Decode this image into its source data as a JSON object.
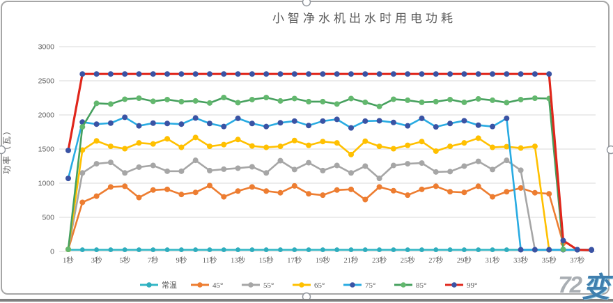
{
  "watermark": {
    "prefix": "72",
    "suffix": "变"
  },
  "chart_data": {
    "type": "line",
    "title": "小智净水机出水时用电功耗",
    "xlabel": "",
    "ylabel": "功率（瓦）",
    "ylim": [
      0,
      3000
    ],
    "ytick_step": 500,
    "ytick_labels": [
      "0",
      "500",
      "1000",
      "1500",
      "2000",
      "2500",
      "3000"
    ],
    "grid": "horizontal",
    "legend_position": "bottom",
    "x_unit": "秒",
    "categories": [
      "1秒",
      "2秒",
      "3秒",
      "4秒",
      "5秒",
      "6秒",
      "7秒",
      "8秒",
      "9秒",
      "10秒",
      "11秒",
      "12秒",
      "13秒",
      "14秒",
      "15秒",
      "16秒",
      "17秒",
      "18秒",
      "19秒",
      "20秒",
      "21秒",
      "22秒",
      "23秒",
      "24秒",
      "25秒",
      "26秒",
      "27秒",
      "28秒",
      "29秒",
      "30秒",
      "31秒",
      "32秒",
      "33秒",
      "34秒",
      "35秒",
      "36秒",
      "37秒",
      "38秒"
    ],
    "xtick_labels_shown": [
      "1秒",
      "3秒",
      "5秒",
      "7秒",
      "9秒",
      "11秒",
      "13秒",
      "15秒",
      "17秒",
      "19秒",
      "21秒",
      "23秒",
      "25秒",
      "27秒",
      "29秒",
      "31秒",
      "33秒",
      "35秒",
      "37秒"
    ],
    "series": [
      {
        "name": "常温",
        "line_color": "#33b7c6",
        "marker_color": "#2fadbd",
        "values": [
          25,
          25,
          25,
          25,
          25,
          25,
          25,
          25,
          25,
          25,
          25,
          25,
          25,
          25,
          25,
          25,
          25,
          25,
          25,
          25,
          25,
          25,
          25,
          25,
          25,
          25,
          25,
          25,
          25,
          25,
          25,
          25,
          25,
          25,
          25,
          25,
          25,
          25
        ]
      },
      {
        "name": "45°",
        "line_color": "#ed7d31",
        "marker_color": "#ed7d31",
        "values": [
          30,
          720,
          810,
          945,
          955,
          790,
          900,
          910,
          835,
          865,
          965,
          800,
          885,
          945,
          885,
          860,
          960,
          845,
          825,
          900,
          910,
          760,
          945,
          890,
          825,
          910,
          955,
          875,
          865,
          955,
          800,
          875,
          930,
          860,
          845,
          120,
          null,
          null
        ]
      },
      {
        "name": "55°",
        "line_color": "#a6a6a6",
        "marker_color": "#a6a6a6",
        "values": [
          30,
          1150,
          1285,
          1305,
          1150,
          1235,
          1260,
          1175,
          1175,
          1335,
          1185,
          1205,
          1220,
          1240,
          1150,
          1330,
          1200,
          1300,
          1185,
          1260,
          1150,
          1250,
          1070,
          1260,
          1285,
          1295,
          1165,
          1170,
          1250,
          1320,
          1200,
          1335,
          1190,
          25,
          null,
          null,
          null,
          null
        ]
      },
      {
        "name": "65°",
        "line_color": "#ffc000",
        "marker_color": "#ffc000",
        "values": [
          30,
          1485,
          1620,
          1540,
          1505,
          1590,
          1575,
          1650,
          1525,
          1670,
          1540,
          1565,
          1640,
          1545,
          1525,
          1540,
          1625,
          1555,
          1610,
          1590,
          1420,
          1615,
          1540,
          1505,
          1555,
          1610,
          1470,
          1540,
          1590,
          1660,
          1525,
          1535,
          1515,
          1540,
          25,
          null,
          null,
          null
        ]
      },
      {
        "name": "75°",
        "line_color": "#29abe2",
        "marker_color": "#3a53a4",
        "values": [
          1070,
          1895,
          1865,
          1880,
          1965,
          1840,
          1880,
          1875,
          1865,
          1955,
          1875,
          1830,
          1950,
          1875,
          1830,
          1885,
          1910,
          1845,
          1910,
          1935,
          1810,
          1910,
          1915,
          1890,
          1840,
          1950,
          1825,
          1875,
          1915,
          1850,
          1830,
          1950,
          25,
          25,
          25,
          25,
          25,
          25
        ]
      },
      {
        "name": "85°",
        "line_color": "#46a05e",
        "marker_color": "#63b86e",
        "values": [
          30,
          1825,
          2170,
          2160,
          2230,
          2245,
          2200,
          2225,
          2195,
          2205,
          2175,
          2255,
          2180,
          2225,
          2255,
          2205,
          2240,
          2195,
          2195,
          2160,
          2240,
          2185,
          2125,
          2230,
          2215,
          2185,
          2195,
          2225,
          2185,
          2235,
          2215,
          2180,
          2225,
          2245,
          2240,
          30,
          null,
          null
        ]
      },
      {
        "name": "99°",
        "line_color": "#e0261b",
        "marker_color": "#3a53a4",
        "values": [
          1480,
          2600,
          2600,
          2600,
          2600,
          2600,
          2600,
          2600,
          2600,
          2600,
          2600,
          2600,
          2600,
          2600,
          2600,
          2600,
          2600,
          2600,
          2600,
          2600,
          2600,
          2600,
          2600,
          2600,
          2600,
          2600,
          2600,
          2600,
          2600,
          2600,
          2600,
          2600,
          2600,
          2600,
          2600,
          160,
          25,
          20
        ]
      }
    ]
  }
}
